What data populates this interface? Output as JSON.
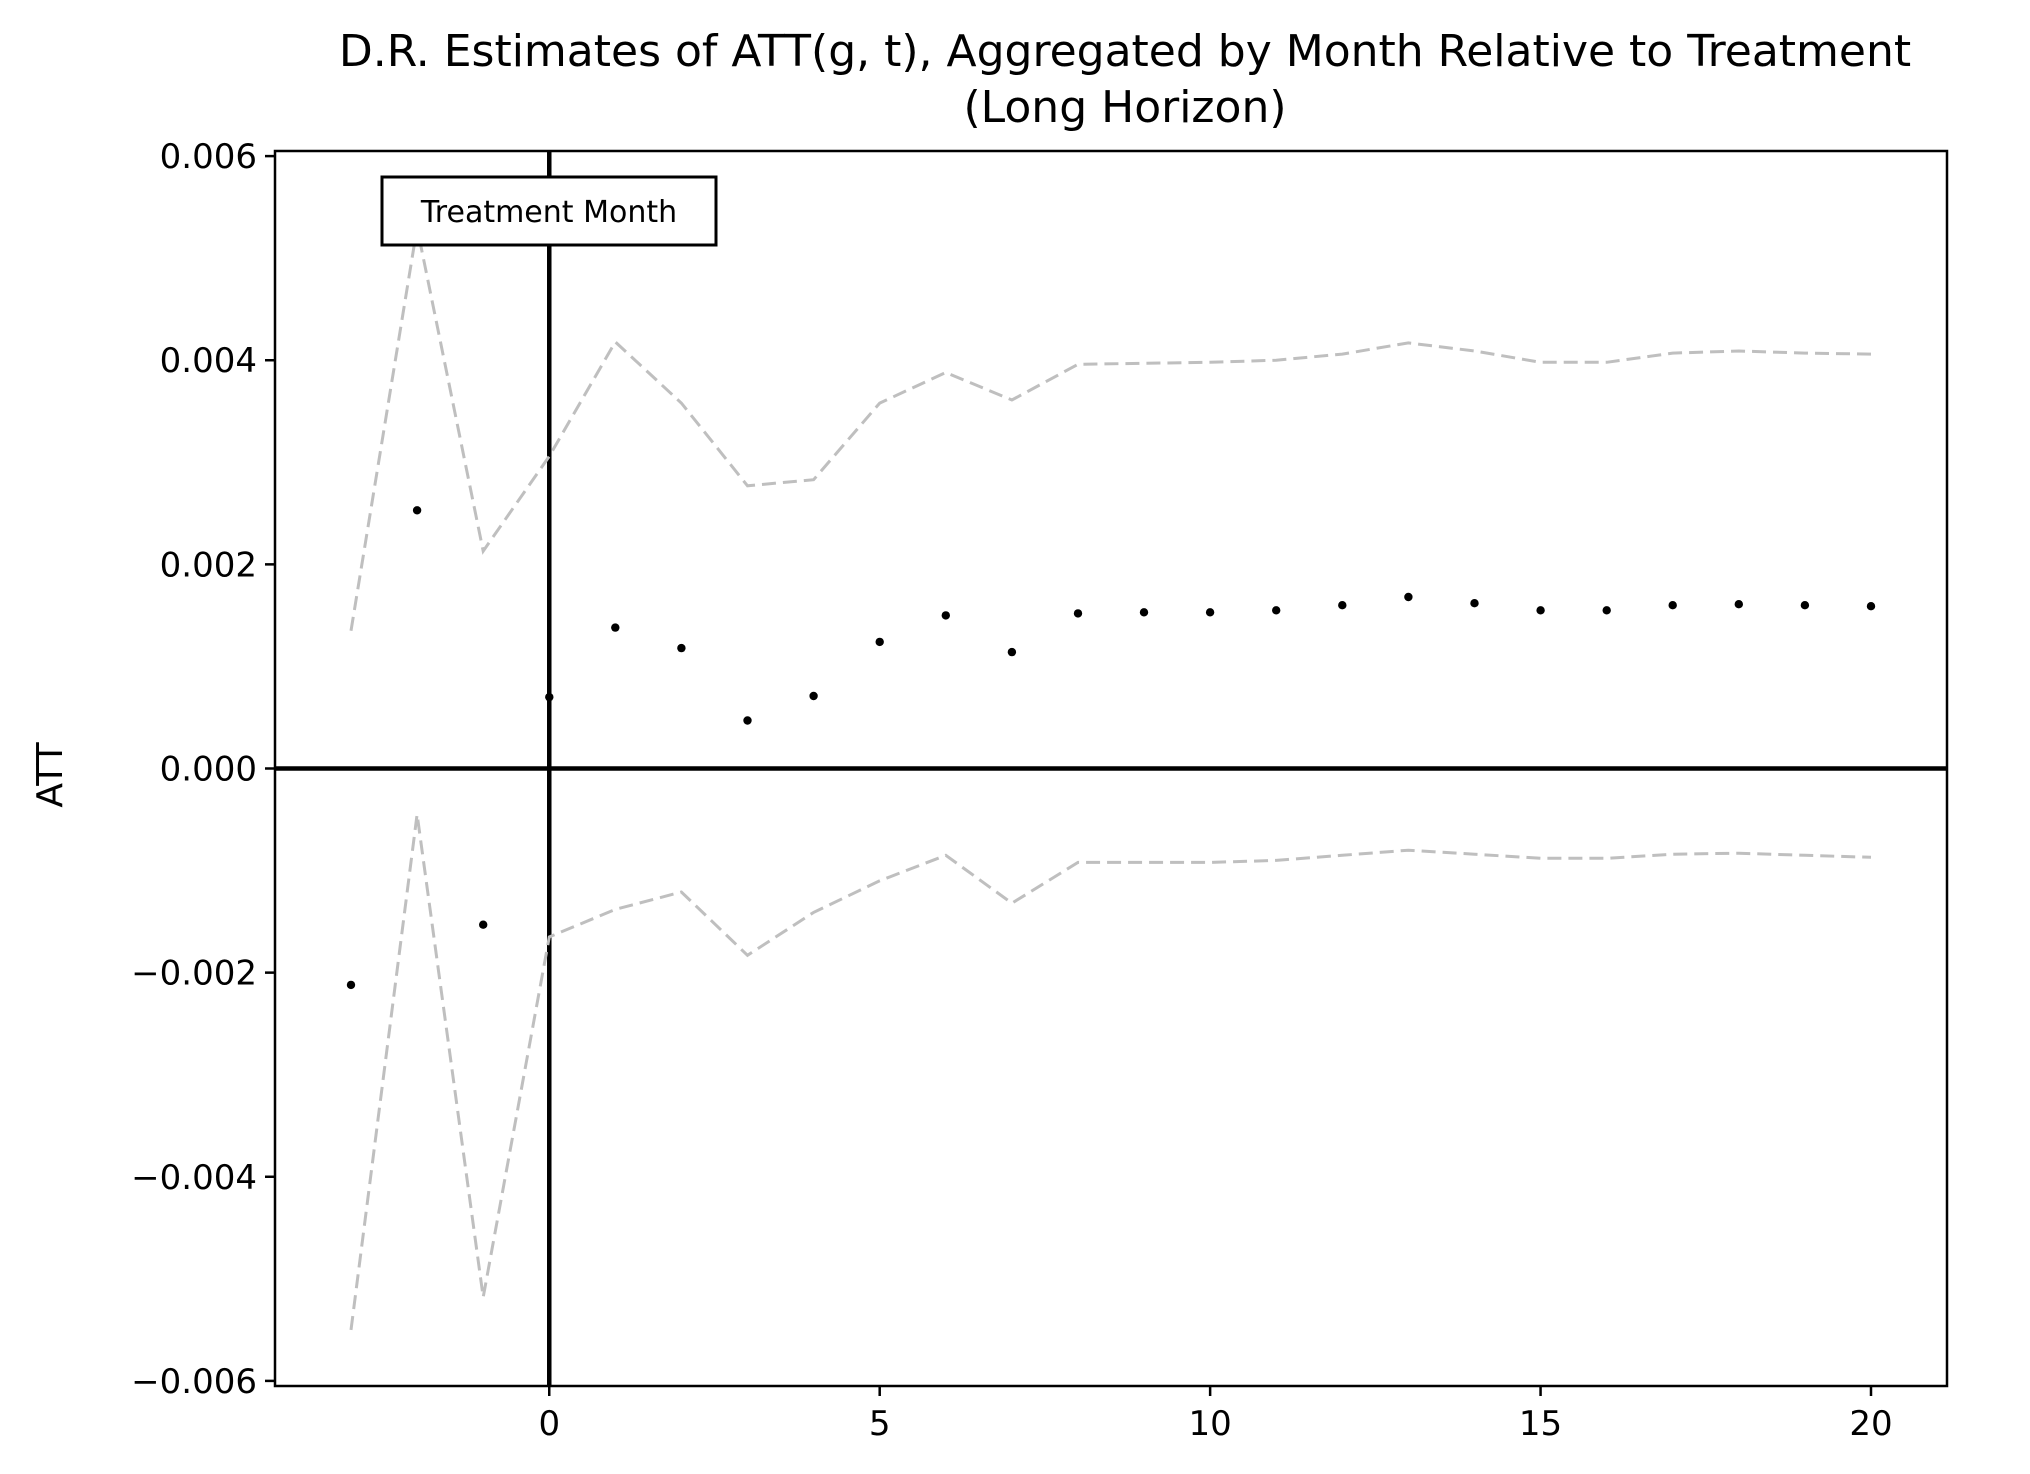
{
  "chart_data": {
    "type": "scatter",
    "title": "D.R. Estimates of ATT(g, t), Aggregated by Month Relative to Treatment",
    "subtitle": "(Long Horizon)",
    "xlabel": "",
    "ylabel": "ATT",
    "xlim": [
      -4.15,
      21.15
    ],
    "ylim": [
      -0.00605,
      0.00605
    ],
    "x_ticks": [
      0,
      5,
      10,
      15,
      20
    ],
    "x_tick_labels": [
      "0",
      "5",
      "10",
      "15",
      "20"
    ],
    "y_ticks": [
      0.006,
      0.004,
      0.002,
      0.0,
      -0.002,
      -0.004,
      -0.006
    ],
    "y_tick_labels": [
      "0.006",
      "0.004",
      "0.002",
      "0.000",
      "−0.002",
      "−0.004",
      "−0.006"
    ],
    "grid": false,
    "reference_lines": {
      "horizontal_y": 0,
      "vertical_x": 0
    },
    "annotation": {
      "text": "Treatment Month",
      "x": 0
    },
    "x": [
      -3,
      -2,
      -1,
      0,
      1,
      2,
      3,
      4,
      5,
      6,
      7,
      8,
      9,
      10,
      11,
      12,
      13,
      14,
      15,
      16,
      17,
      18,
      19,
      20
    ],
    "series": [
      {
        "values": [
          -0.00212,
          0.00253,
          -0.00153,
          0.0007,
          0.00138,
          0.00118,
          0.00047,
          0.00071,
          0.00124,
          0.0015,
          0.00114,
          0.00152,
          0.00153,
          0.00153,
          0.00155,
          0.0016,
          0.00168,
          0.00162,
          0.00155,
          0.00155,
          0.0016,
          0.00161,
          0.0016,
          0.00159
        ],
        "color": "#000000",
        "style": "points"
      },
      {
        "values": [
          0.00135,
          0.0053,
          0.00213,
          0.00306,
          0.00418,
          0.00358,
          0.00277,
          0.00283,
          0.00358,
          0.00388,
          0.00361,
          0.00396,
          0.00397,
          0.00398,
          0.004,
          0.00406,
          0.00417,
          0.00409,
          0.00398,
          0.00398,
          0.00407,
          0.00409,
          0.00407,
          0.00406
        ],
        "color": "#bfbfbf",
        "style": "dashed"
      },
      {
        "values": [
          -0.0055,
          -0.00045,
          -0.00518,
          -0.00165,
          -0.00138,
          -0.00121,
          -0.00183,
          -0.00141,
          -0.0011,
          -0.00085,
          -0.00132,
          -0.00092,
          -0.00092,
          -0.00092,
          -0.0009,
          -0.00085,
          -0.0008,
          -0.00084,
          -0.00088,
          -0.00088,
          -0.00084,
          -0.00083,
          -0.00085,
          -0.00087
        ],
        "color": "#bfbfbf",
        "style": "dashed"
      }
    ]
  }
}
